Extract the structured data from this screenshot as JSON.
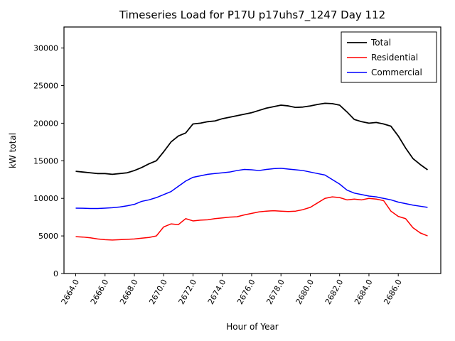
{
  "chart_data": {
    "type": "line",
    "title": "Timeseries Load for P17U p17uhs7_1247  Day 112",
    "xlabel": "Hour of Year",
    "ylabel": "kW total",
    "xlim": [
      2663.2,
      2688.9
    ],
    "ylim": [
      0,
      32800
    ],
    "grid": false,
    "legend_position": "upper right",
    "x_ticks": [
      2664,
      2666,
      2668,
      2670,
      2672,
      2674,
      2676,
      2678,
      2680,
      2682,
      2684,
      2686
    ],
    "x_tick_labels": [
      "2664.0",
      "2666.0",
      "2668.0",
      "2670.0",
      "2672.0",
      "2674.0",
      "2676.0",
      "2678.0",
      "2680.0",
      "2682.0",
      "2684.0",
      "2686.0"
    ],
    "y_ticks": [
      0,
      5000,
      10000,
      15000,
      20000,
      25000,
      30000
    ],
    "y_tick_labels": [
      "0",
      "5000",
      "10000",
      "15000",
      "20000",
      "25000",
      "30000"
    ],
    "x": [
      2664.0,
      2664.5,
      2665.0,
      2665.5,
      2666.0,
      2666.5,
      2667.0,
      2667.5,
      2668.0,
      2668.5,
      2669.0,
      2669.5,
      2670.0,
      2670.5,
      2671.0,
      2671.5,
      2672.0,
      2672.5,
      2673.0,
      2673.5,
      2674.0,
      2674.5,
      2675.0,
      2675.5,
      2676.0,
      2676.5,
      2677.0,
      2677.5,
      2678.0,
      2678.5,
      2679.0,
      2679.5,
      2680.0,
      2680.5,
      2681.0,
      2681.5,
      2682.0,
      2682.5,
      2683.0,
      2683.5,
      2684.0,
      2684.5,
      2685.0,
      2685.5,
      2686.0,
      2686.5,
      2687.0,
      2687.5,
      2688.0
    ],
    "series": [
      {
        "name": "Total",
        "color": "#000000",
        "linewidth": 1.8,
        "values": [
          13600,
          13500,
          13400,
          13300,
          13300,
          13200,
          13300,
          13400,
          13700,
          14100,
          14600,
          15000,
          16200,
          17500,
          18300,
          18700,
          19900,
          20000,
          20200,
          20300,
          20600,
          20800,
          21000,
          21200,
          21400,
          21700,
          22000,
          22200,
          22400,
          22300,
          22100,
          22150,
          22300,
          22500,
          22650,
          22600,
          22400,
          21500,
          20500,
          20200,
          20000,
          20100,
          19900,
          19600,
          18300,
          16700,
          15300,
          14500,
          13800
        ]
      },
      {
        "name": "Residential",
        "color": "#ff0000",
        "linewidth": 1.5,
        "values": [
          4900,
          4850,
          4750,
          4600,
          4500,
          4450,
          4500,
          4550,
          4600,
          4700,
          4800,
          5000,
          6200,
          6600,
          6500,
          7300,
          7000,
          7100,
          7150,
          7300,
          7400,
          7500,
          7550,
          7800,
          8000,
          8200,
          8300,
          8350,
          8300,
          8250,
          8300,
          8500,
          8800,
          9400,
          10000,
          10200,
          10100,
          9800,
          9900,
          9800,
          10000,
          9900,
          9700,
          8300,
          7600,
          7300,
          6100,
          5400,
          5000
        ]
      },
      {
        "name": "Commercial",
        "color": "#0000ff",
        "linewidth": 1.5,
        "values": [
          8700,
          8680,
          8650,
          8650,
          8700,
          8750,
          8850,
          9000,
          9200,
          9600,
          9800,
          10100,
          10500,
          10900,
          11600,
          12300,
          12800,
          13000,
          13200,
          13300,
          13400,
          13500,
          13700,
          13850,
          13800,
          13700,
          13850,
          13950,
          14000,
          13900,
          13800,
          13700,
          13500,
          13300,
          13100,
          12500,
          11900,
          11100,
          10700,
          10500,
          10300,
          10200,
          10000,
          9800,
          9500,
          9300,
          9100,
          8950,
          8800
        ]
      }
    ]
  }
}
